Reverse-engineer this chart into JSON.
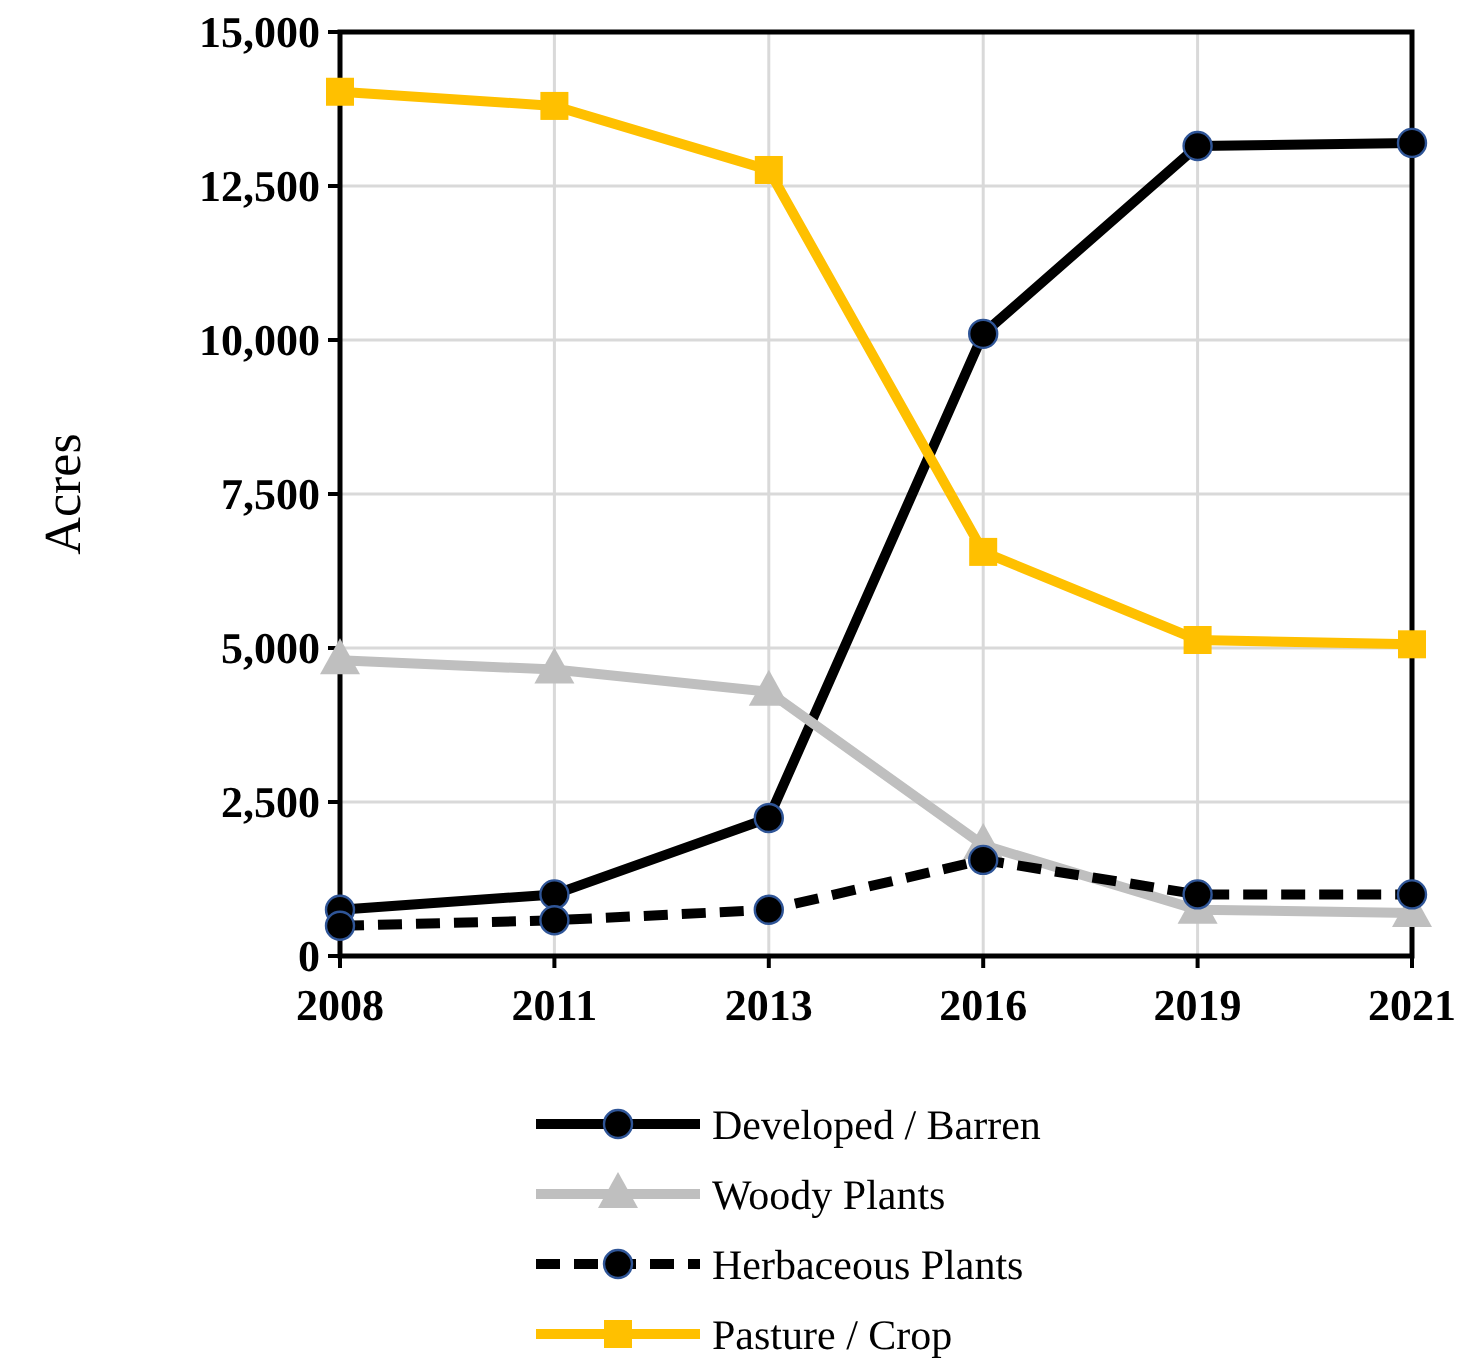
{
  "chart_data": {
    "type": "line",
    "ylabel": "Acres",
    "categories": [
      "2008",
      "2011",
      "2013",
      "2016",
      "2019",
      "2021"
    ],
    "ylim": [
      0,
      15000
    ],
    "yticks": [
      {
        "value": 0,
        "label": "0"
      },
      {
        "value": 2500,
        "label": "2,500"
      },
      {
        "value": 5000,
        "label": "5,000"
      },
      {
        "value": 7500,
        "label": "7,500"
      },
      {
        "value": 10000,
        "label": "10,000"
      },
      {
        "value": 12500,
        "label": "12,500"
      },
      {
        "value": 15000,
        "label": "15,000"
      }
    ],
    "grid": true,
    "legend": "bottom",
    "series": [
      {
        "name": "Developed / Barren",
        "color": "#000000",
        "marker": "circle",
        "line_style": "solid",
        "values": [
          750,
          1000,
          2240,
          10100,
          13150,
          13200
        ]
      },
      {
        "name": "Woody Plants",
        "color": "#bfbfbf",
        "marker": "triangle",
        "line_style": "solid",
        "values": [
          4800,
          4650,
          4290,
          1800,
          750,
          700
        ]
      },
      {
        "name": "Herbaceous Plants",
        "color": "#000000",
        "marker": "circle",
        "line_style": "dashed",
        "values": [
          490,
          580,
          750,
          1560,
          1000,
          1000
        ]
      },
      {
        "name": "Pasture / Crop",
        "color": "#ffc000",
        "marker": "square",
        "line_style": "solid",
        "values": [
          14030,
          13800,
          12760,
          6560,
          5130,
          5060
        ]
      }
    ]
  }
}
